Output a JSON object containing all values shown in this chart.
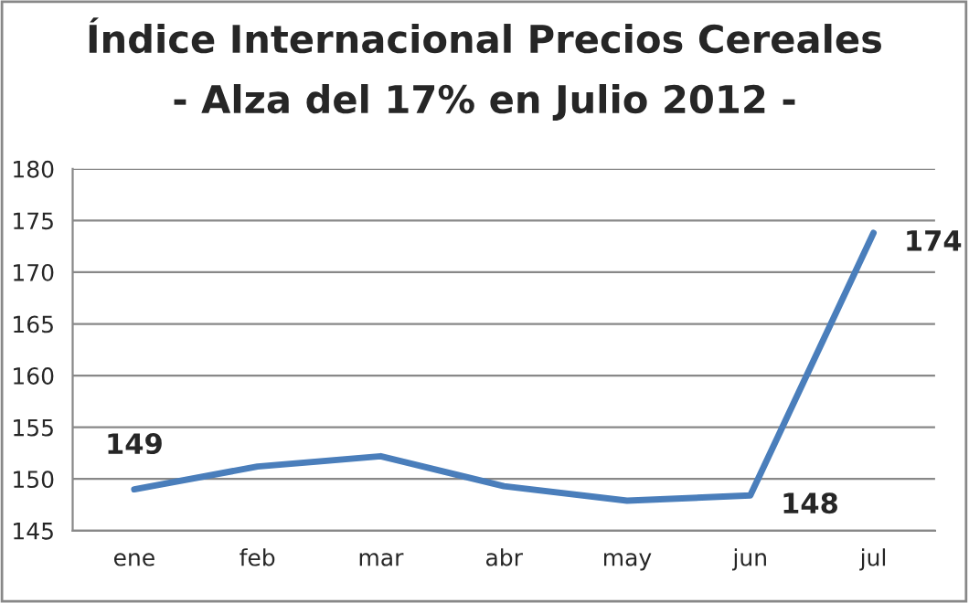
{
  "chart_data": {
    "type": "line",
    "title": "Índice Internacional Precios Cereales",
    "subtitle": "- Alza del 17% en Julio 2012 -",
    "categories": [
      "ene",
      "feb",
      "mar",
      "abr",
      "may",
      "jun",
      "jul"
    ],
    "series": [
      {
        "color": "#4a7ebb",
        "values": [
          149.0,
          151.2,
          152.2,
          149.3,
          147.9,
          148.4,
          173.8
        ],
        "value_labels": [
          "149",
          null,
          null,
          null,
          null,
          "148",
          "174"
        ]
      }
    ],
    "ylim": [
      145,
      180
    ],
    "yticks": [
      145,
      150,
      155,
      160,
      165,
      170,
      175,
      180
    ],
    "grid": "y",
    "legend": false,
    "marker": "none",
    "line_style": "solid"
  }
}
